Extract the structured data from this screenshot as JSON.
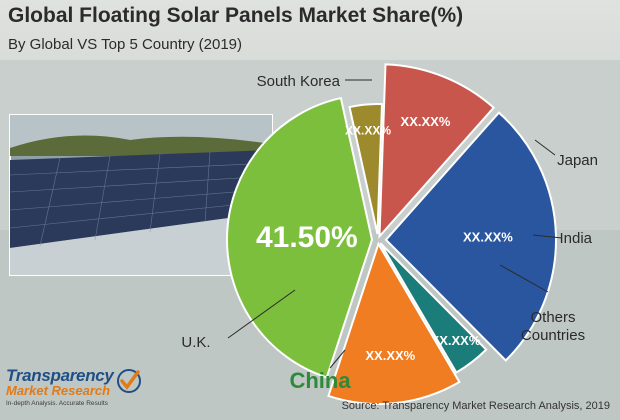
{
  "header": {
    "title": "Global Floating Solar Panels Market Share(%)",
    "subtitle": "By Global VS Top 5 Country (2019)"
  },
  "chart_data": {
    "type": "pie",
    "start_angle_deg": -88,
    "labels": [
      "South Korea",
      "Japan",
      "India",
      "Others Countries",
      "China",
      "U.K."
    ],
    "values": [
      11,
      26,
      4,
      13.5,
      41.5,
      4
    ],
    "value_labels": [
      "XX.XX%",
      "XX.XX%",
      "XX.XX%",
      "XX.XX%",
      "41.50%",
      "XX.XX%"
    ],
    "colors": [
      "#c9564d",
      "#2a56a0",
      "#1a7d7a",
      "#f07d22",
      "#7bbf3c",
      "#9c8a2c"
    ],
    "highlight_color": "#2e8a3a"
  },
  "footer": {
    "source": "Source: Transparency Market Research Analysis, 2019",
    "logo_name": "Transparency",
    "logo_sub": "Market Research",
    "logo_tagline": "In-depth Analysis. Accurate Results"
  }
}
